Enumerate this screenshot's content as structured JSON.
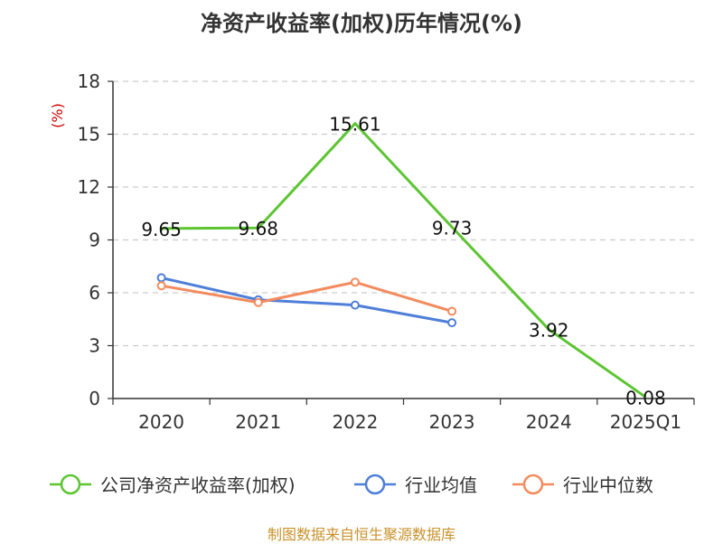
{
  "title": "净资产收益率(加权)历年情况(%)",
  "footer": "制图数据来自恒生聚源数据库",
  "chart_data": {
    "type": "line",
    "title": "净资产收益率(加权)历年情况(%)",
    "ylabel": "(%)",
    "xlabel": "",
    "ylim": [
      0,
      18
    ],
    "yticks": [
      "0",
      "3",
      "6",
      "9",
      "12",
      "15",
      "18"
    ],
    "categories": [
      "2020",
      "2021",
      "2022",
      "2023",
      "2024",
      "2025Q1"
    ],
    "grid": true,
    "legend_position": "bottom",
    "series": [
      {
        "name": "公司净资产收益率(加权)",
        "color": "#5cc531",
        "values": [
          9.65,
          9.68,
          15.61,
          9.73,
          3.92,
          0.08
        ],
        "labels": [
          "9.65",
          "9.68",
          "15.61",
          "9.73",
          "3.92",
          "0.08"
        ]
      },
      {
        "name": "行业均值",
        "color": "#4f7fd8",
        "values": [
          6.85,
          5.6,
          5.3,
          4.3,
          null,
          null
        ]
      },
      {
        "name": "行业中位数",
        "color": "#f48b5e",
        "values": [
          6.4,
          5.45,
          6.6,
          4.95,
          null,
          null
        ]
      }
    ]
  }
}
